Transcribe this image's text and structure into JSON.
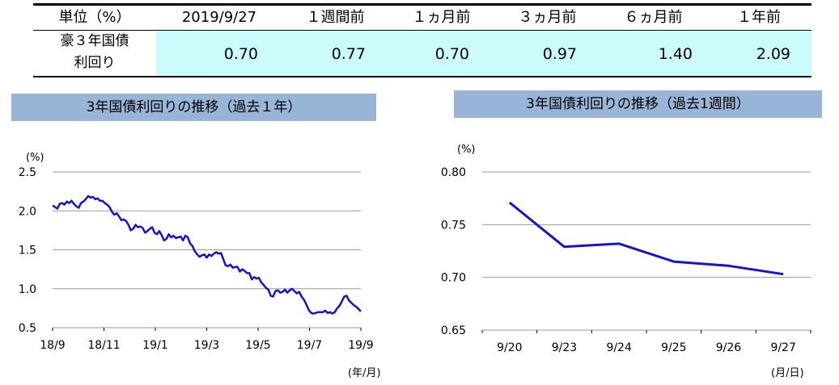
{
  "table": {
    "unit_header": "単位（%）",
    "columns": [
      "2019/9/27",
      "１週間前",
      "１ヵ月前",
      "３ヵ月前",
      "６ヵ月前",
      "１年前"
    ],
    "row_label_line1": "豪３年国債",
    "row_label_line2": "利回り",
    "values": [
      "0.70",
      "0.77",
      "0.70",
      "0.97",
      "1.40",
      "2.09"
    ]
  },
  "colors": {
    "header_fill": "#98b4d6",
    "cell_fill": "#ccfbfb",
    "series": "#1414c8",
    "grid": "#9a9a9a"
  },
  "chart_data": [
    {
      "type": "line",
      "title": "3年国債利回りの推移（過去１年）",
      "ylabel": "(%)",
      "xlabel": "(年/月)",
      "ylim": [
        0.5,
        2.5
      ],
      "yticks": [
        "2.5",
        "2.0",
        "1.5",
        "1.0",
        "0.5"
      ],
      "xticks": [
        "18/9",
        "18/11",
        "19/1",
        "19/3",
        "19/5",
        "19/7",
        "19/9"
      ],
      "grid": true,
      "series": [
        {
          "x": [
            0,
            2,
            4,
            6,
            8,
            10,
            12,
            14,
            16,
            18,
            20,
            22,
            24,
            26,
            28,
            30,
            32,
            34,
            36,
            38,
            40,
            42,
            44,
            46,
            48,
            50,
            52,
            54,
            56,
            58,
            60,
            62,
            64,
            66,
            68,
            70,
            72,
            74,
            76,
            78,
            80,
            82,
            84,
            86,
            88,
            90,
            92,
            94,
            96,
            98,
            100,
            102,
            104,
            106,
            108,
            110,
            112,
            114,
            116,
            118,
            120,
            122,
            124,
            126,
            128,
            130,
            132,
            134,
            136,
            138,
            140,
            142,
            144,
            146,
            148,
            150,
            152,
            154,
            156,
            158,
            160,
            162,
            164,
            166,
            168,
            170,
            172,
            174,
            176,
            178,
            180,
            182,
            184,
            186,
            188,
            190,
            192,
            194,
            196,
            198,
            200,
            202,
            204,
            206,
            208,
            210,
            212,
            214,
            216,
            218,
            220,
            222,
            224,
            226,
            228,
            230,
            232,
            234,
            236,
            238,
            240,
            242,
            244,
            246,
            248,
            250,
            252,
            254,
            256,
            258,
            260
          ],
          "values": [
            2.07,
            2.05,
            2.03,
            2.09,
            2.1,
            2.08,
            2.12,
            2.1,
            2.13,
            2.09,
            2.06,
            2.04,
            2.1,
            2.12,
            2.15,
            2.19,
            2.17,
            2.18,
            2.15,
            2.16,
            2.13,
            2.13,
            2.1,
            2.08,
            2.05,
            1.99,
            1.95,
            1.97,
            1.93,
            1.88,
            1.89,
            1.87,
            1.82,
            1.75,
            1.77,
            1.82,
            1.79,
            1.8,
            1.78,
            1.72,
            1.74,
            1.77,
            1.79,
            1.72,
            1.7,
            1.74,
            1.69,
            1.62,
            1.64,
            1.7,
            1.66,
            1.68,
            1.65,
            1.66,
            1.67,
            1.62,
            1.68,
            1.66,
            1.58,
            1.55,
            1.48,
            1.44,
            1.41,
            1.43,
            1.44,
            1.4,
            1.44,
            1.42,
            1.45,
            1.47,
            1.45,
            1.46,
            1.38,
            1.3,
            1.29,
            1.31,
            1.27,
            1.28,
            1.28,
            1.22,
            1.25,
            1.23,
            1.2,
            1.2,
            1.12,
            1.15,
            1.13,
            1.14,
            1.08,
            1.05,
            1.01,
            0.99,
            0.91,
            0.9,
            0.97,
            0.98,
            0.95,
            0.96,
            0.99,
            0.95,
            0.98,
            1.0,
            0.97,
            0.94,
            0.96,
            0.9,
            0.86,
            0.8,
            0.73,
            0.69,
            0.68,
            0.69,
            0.7,
            0.7,
            0.7,
            0.72,
            0.69,
            0.7,
            0.68,
            0.7,
            0.75,
            0.78,
            0.84,
            0.9,
            0.91,
            0.85,
            0.82,
            0.79,
            0.77,
            0.74,
            0.71
          ]
        }
      ]
    },
    {
      "type": "line",
      "title": "3年国債利回りの推移（過去1週間）",
      "ylabel": "(%)",
      "xlabel": "(月/日)",
      "ylim": [
        0.65,
        0.8
      ],
      "yticks": [
        "0.80",
        "0.75",
        "0.70",
        "0.65"
      ],
      "categories": [
        "9/20",
        "9/23",
        "9/24",
        "9/25",
        "9/26",
        "9/27"
      ],
      "grid": true,
      "series": [
        {
          "values": [
            0.771,
            0.729,
            0.732,
            0.715,
            0.711,
            0.703
          ]
        }
      ]
    }
  ]
}
